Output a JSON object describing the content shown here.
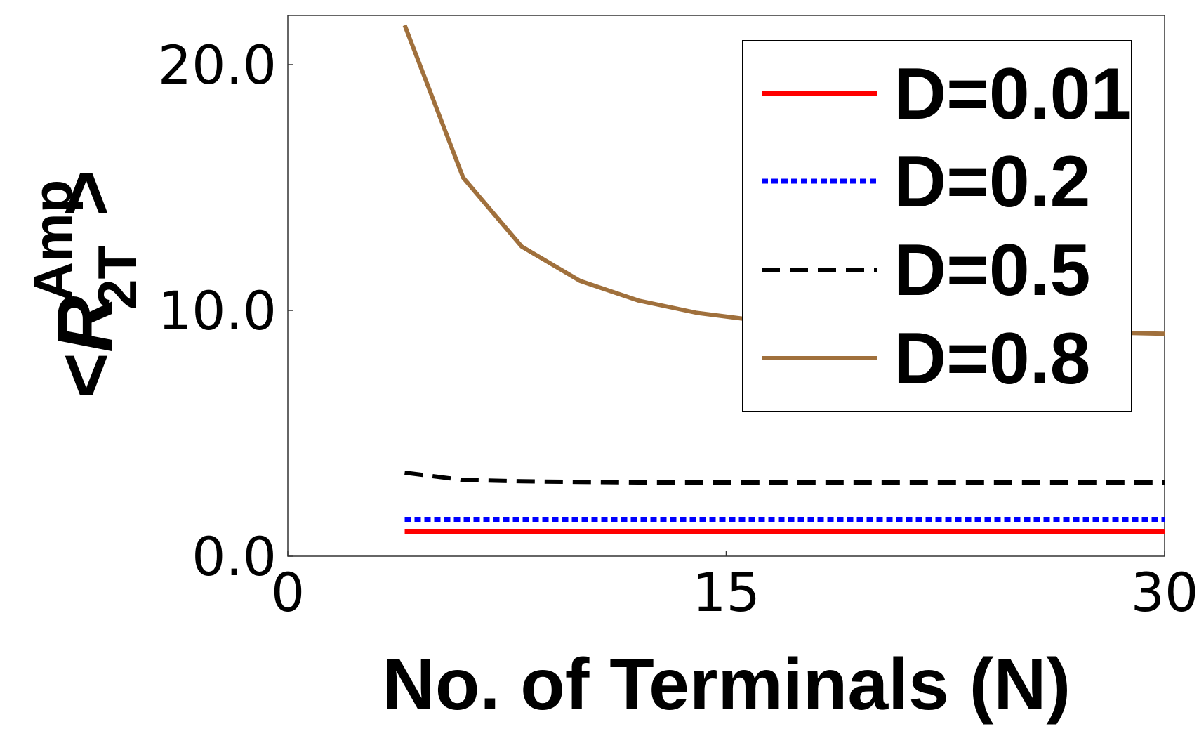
{
  "chart_data": {
    "type": "line",
    "xlabel": "No. of Terminals (N)",
    "ylabel": {
      "open": "<",
      "base": "R",
      "superscript": "Amp",
      "subscript": "2T",
      "close": ">"
    },
    "xlim": [
      0,
      30
    ],
    "ylim": [
      0,
      22
    ],
    "xticks": [
      0,
      15,
      30
    ],
    "xtick_labels": [
      "0",
      "15",
      "30"
    ],
    "yticks": [
      0,
      10,
      20
    ],
    "ytick_labels": [
      "0.0",
      "10.0",
      "20.0"
    ],
    "grid": false,
    "legend_position": "top-right",
    "series": [
      {
        "name": "D=0.01",
        "color": "#ff0000",
        "style": "solid",
        "x": [
          4,
          6,
          8,
          10,
          12,
          14,
          16,
          18,
          20,
          22,
          24,
          26,
          28,
          30
        ],
        "y": [
          1.0,
          1.0,
          1.0,
          1.0,
          1.0,
          1.0,
          1.0,
          1.0,
          1.0,
          1.0,
          1.0,
          1.0,
          1.0,
          1.0
        ]
      },
      {
        "name": "D=0.2",
        "color": "#0000ff",
        "style": "dotted",
        "x": [
          4,
          6,
          8,
          10,
          12,
          14,
          16,
          18,
          20,
          22,
          24,
          26,
          28,
          30
        ],
        "y": [
          1.5,
          1.5,
          1.5,
          1.5,
          1.5,
          1.5,
          1.5,
          1.5,
          1.5,
          1.5,
          1.5,
          1.5,
          1.5,
          1.5
        ]
      },
      {
        "name": "D=0.5",
        "color": "#000000",
        "style": "dashed",
        "x": [
          4,
          6,
          8,
          10,
          12,
          14,
          16,
          18,
          20,
          22,
          24,
          26,
          28,
          30
        ],
        "y": [
          3.4,
          3.1,
          3.05,
          3.02,
          3.0,
          3.0,
          3.0,
          3.0,
          3.0,
          3.0,
          3.0,
          3.0,
          3.0,
          3.0
        ]
      },
      {
        "name": "D=0.8",
        "color": "#a0703c",
        "style": "solid",
        "x": [
          4,
          6,
          8,
          10,
          12,
          14,
          16,
          18,
          20,
          22,
          24,
          26,
          28,
          30
        ],
        "y": [
          21.6,
          15.4,
          12.6,
          11.2,
          10.4,
          9.9,
          9.6,
          9.45,
          9.35,
          9.25,
          9.2,
          9.15,
          9.1,
          9.05
        ]
      }
    ]
  }
}
